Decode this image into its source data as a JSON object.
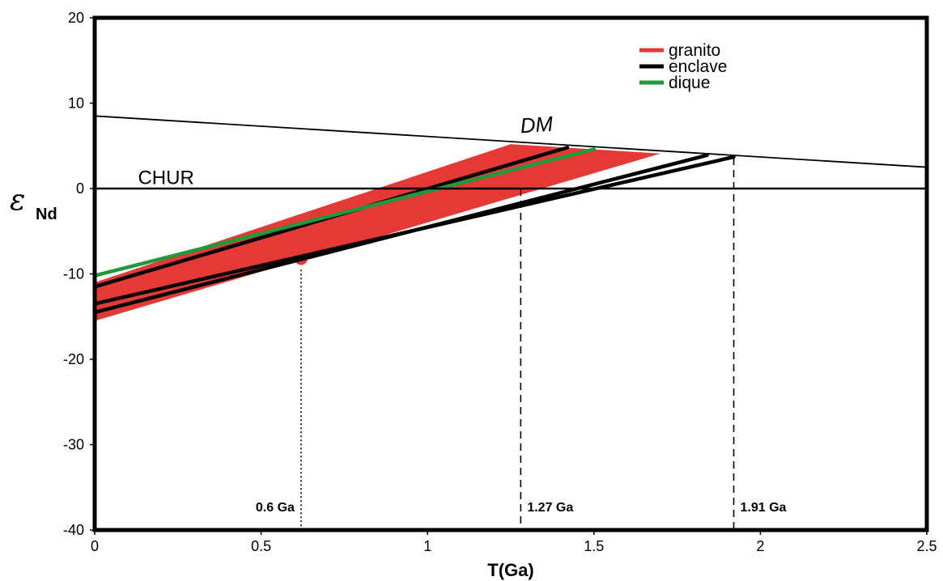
{
  "chart_data": {
    "type": "line",
    "xlabel": "T(Ga)",
    "ylabel_main": "ε",
    "ylabel_sub": "Nd",
    "xlim": [
      0,
      2.5
    ],
    "ylim": [
      -40,
      20
    ],
    "xticks": [
      0,
      0.5,
      1,
      1.5,
      2,
      2.5
    ],
    "xtick_labels": [
      "0",
      "0.5",
      "1",
      "1.5",
      "2",
      "2.5"
    ],
    "yticks": [
      -40,
      -30,
      -20,
      -10,
      0,
      10,
      20
    ],
    "ytick_labels": [
      "-40",
      "-30",
      "-20",
      "-10",
      "0",
      "10",
      "20"
    ],
    "grid": false,
    "legend_position": "top-right",
    "legend": [
      {
        "name": "granito",
        "color": "#e53935"
      },
      {
        "name": "enclave",
        "color": "#000000"
      },
      {
        "name": "dique",
        "color": "#1e9a3a"
      }
    ],
    "reference_lines": [
      {
        "name": "DM",
        "x": [
          0,
          2.5
        ],
        "y": [
          8.5,
          2.5
        ]
      },
      {
        "name": "CHUR",
        "x": [
          0,
          2.5
        ],
        "y": [
          0,
          0
        ]
      }
    ],
    "granito_band": {
      "color": "#e53935",
      "x": [
        0,
        1.25,
        1.7,
        0
      ],
      "y": [
        -11,
        5.2,
        4.1,
        -15.5
      ]
    },
    "series": [
      {
        "name": "enclave",
        "color": "#000000",
        "x": [
          0,
          1.42
        ],
        "y": [
          -11.5,
          4.8
        ]
      },
      {
        "name": "enclave",
        "color": "#000000",
        "x": [
          0,
          1.84
        ],
        "y": [
          -14.5,
          3.9
        ]
      },
      {
        "name": "enclave",
        "color": "#000000",
        "x": [
          0,
          1.92
        ],
        "y": [
          -13.5,
          3.7
        ]
      },
      {
        "name": "dique",
        "color": "#1e9a3a",
        "x": [
          0,
          1.5
        ],
        "y": [
          -10.2,
          4.6
        ]
      }
    ],
    "points": [
      {
        "x": 0.62,
        "y": -3.8,
        "color": "#e53935"
      },
      {
        "x": 0.62,
        "y": -8.2,
        "color": "#e53935"
      }
    ],
    "model_ages": [
      {
        "label": "0.6 Ga",
        "x": 0.62,
        "y_top": -9.5,
        "style": "dotted"
      },
      {
        "label": "1.27 Ga",
        "x": 1.28,
        "y_top": 0,
        "style": "dashed"
      },
      {
        "label": "1.91 Ga",
        "x": 1.92,
        "y_top": 3.6,
        "style": "dashed"
      }
    ],
    "annotations": [
      {
        "text": "DM",
        "x": 1.28,
        "y": 6.5
      },
      {
        "text": "CHUR",
        "x": 0.13,
        "y": 0.5
      }
    ]
  }
}
